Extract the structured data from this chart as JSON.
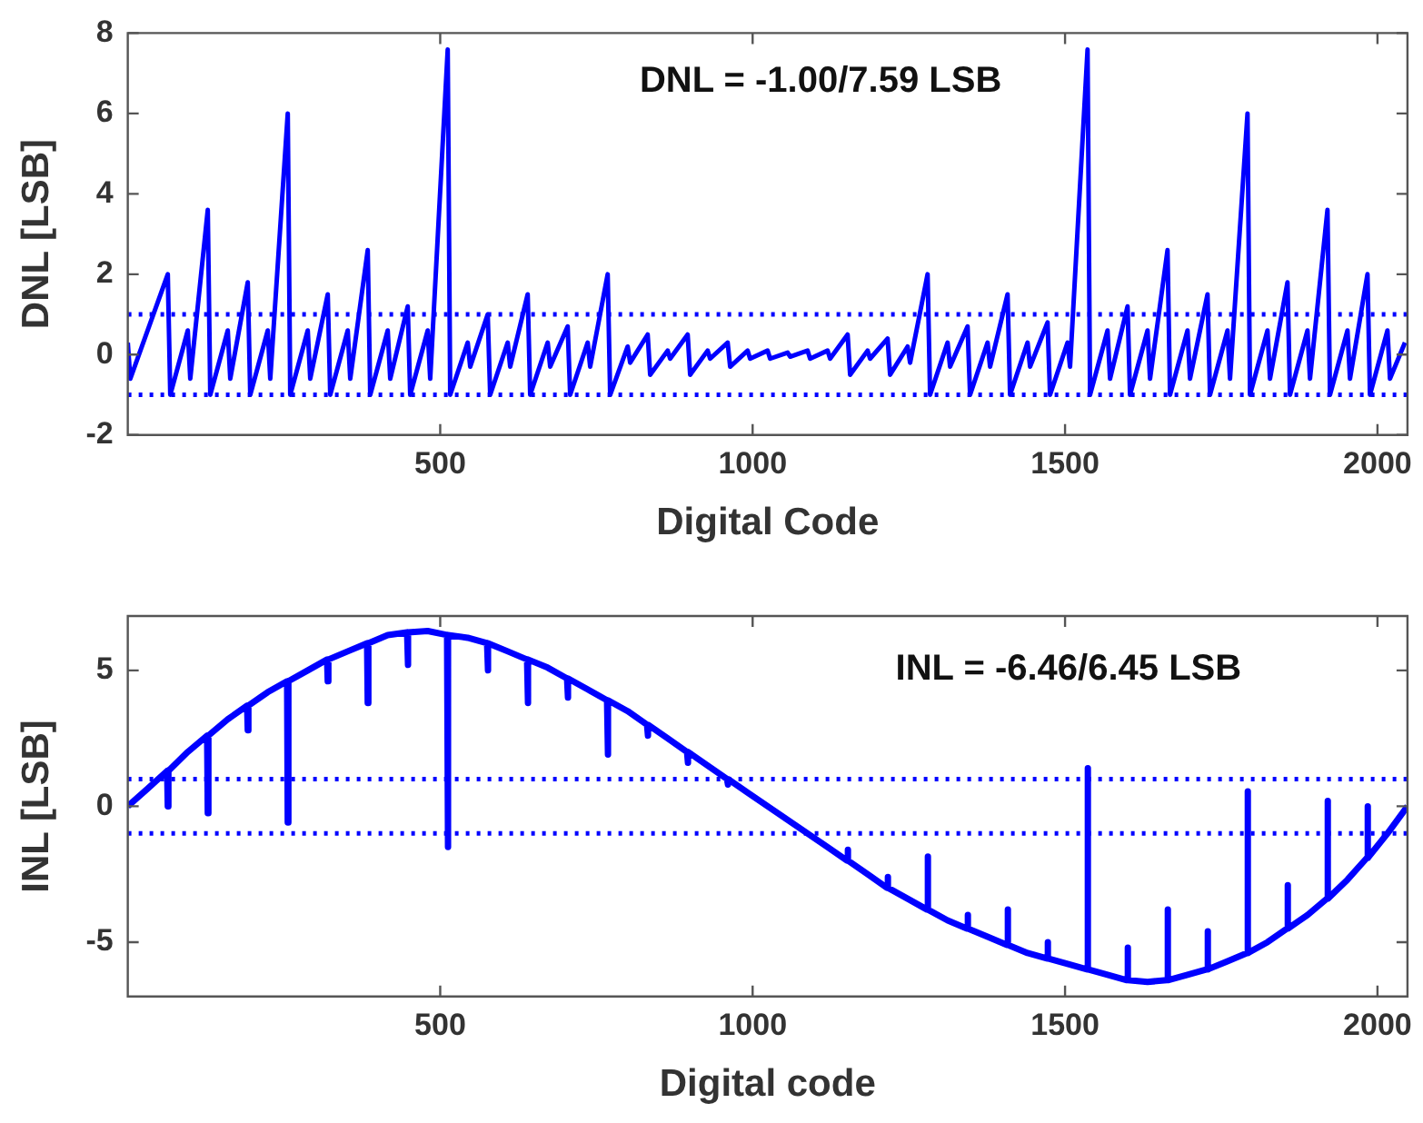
{
  "chart_data": [
    {
      "type": "line",
      "xlabel": "Digital Code",
      "ylabel": "DNL [LSB]",
      "xlim": [
        0,
        2048
      ],
      "xticks": [
        500,
        1000,
        1500,
        2000
      ],
      "ylim": [
        -2,
        8
      ],
      "yticks": [
        -2,
        0,
        2,
        4,
        6,
        8
      ],
      "grid": false,
      "legend": false,
      "marker": "none",
      "line_style": "solid",
      "annotations": [
        "DNL = -1.00/7.59 LSB"
      ],
      "ref_lines": [
        {
          "axis": "y",
          "value": 1,
          "color": "#0000ff",
          "line_style": "dotted"
        },
        {
          "axis": "y",
          "value": -1,
          "color": "#0000ff",
          "line_style": "dotted"
        }
      ],
      "series": [
        {
          "color": "#0000ff",
          "x": [
            0,
            4,
            64,
            68,
            96,
            100,
            128,
            132,
            160,
            164,
            192,
            196,
            224,
            228,
            256,
            260,
            288,
            292,
            320,
            324,
            352,
            356,
            384,
            388,
            416,
            420,
            448,
            452,
            480,
            484,
            512,
            516,
            544,
            548,
            576,
            580,
            608,
            612,
            640,
            644,
            672,
            676,
            704,
            708,
            736,
            740,
            768,
            772,
            800,
            804,
            832,
            836,
            864,
            868,
            896,
            900,
            928,
            932,
            960,
            964,
            992,
            996,
            1024,
            1028,
            1056,
            1060,
            1088,
            1092,
            1120,
            1124,
            1152,
            1156,
            1184,
            1188,
            1216,
            1220,
            1248,
            1252,
            1280,
            1284,
            1312,
            1316,
            1344,
            1348,
            1376,
            1380,
            1408,
            1412,
            1440,
            1444,
            1472,
            1476,
            1504,
            1508,
            1536,
            1540,
            1568,
            1572,
            1600,
            1604,
            1632,
            1636,
            1664,
            1668,
            1696,
            1700,
            1728,
            1732,
            1760,
            1764,
            1792,
            1796,
            1824,
            1828,
            1856,
            1860,
            1888,
            1892,
            1920,
            1924,
            1952,
            1956,
            1984,
            1988,
            2016,
            2020,
            2044
          ],
          "values": [
            0.3,
            -0.6,
            2.0,
            -1,
            0.6,
            -0.6,
            3.6,
            -1,
            0.6,
            -0.6,
            1.8,
            -1,
            0.6,
            -0.6,
            6.0,
            -1,
            0.6,
            -0.6,
            1.5,
            -1,
            0.6,
            -0.6,
            2.6,
            -1,
            0.6,
            -0.6,
            1.2,
            -1,
            0.6,
            -0.6,
            7.59,
            -1,
            0.3,
            -0.3,
            1.0,
            -1,
            0.3,
            -0.3,
            1.5,
            -1,
            0.3,
            -0.3,
            0.7,
            -1,
            0.3,
            -0.3,
            2.0,
            -1,
            0.2,
            -0.2,
            0.5,
            -0.5,
            0.1,
            -0.1,
            0.5,
            -0.5,
            0.1,
            -0.1,
            0.3,
            -0.3,
            0.1,
            -0.1,
            0.1,
            -0.1,
            0.05,
            -0.05,
            0.1,
            -0.1,
            0.1,
            -0.1,
            0.5,
            -0.5,
            0.1,
            -0.1,
            0.4,
            -0.5,
            0.2,
            -0.2,
            2.0,
            -1,
            0.3,
            -0.3,
            0.7,
            -1,
            0.3,
            -0.3,
            1.5,
            -1,
            0.3,
            -0.3,
            0.8,
            -1,
            0.3,
            -0.3,
            7.59,
            -1,
            0.6,
            -0.6,
            1.2,
            -1,
            0.6,
            -0.6,
            2.6,
            -1,
            0.6,
            -0.6,
            1.5,
            -1,
            0.6,
            -0.6,
            6.0,
            -1,
            0.6,
            -0.6,
            1.8,
            -1,
            0.6,
            -0.6,
            3.6,
            -1,
            0.6,
            -0.6,
            2.0,
            -1,
            0.6,
            -0.6,
            0.3
          ]
        }
      ]
    },
    {
      "type": "line",
      "xlabel": "Digital code",
      "ylabel": "INL [LSB]",
      "xlim": [
        0,
        2048
      ],
      "xticks": [
        500,
        1000,
        1500,
        2000
      ],
      "ylim": [
        -7,
        7
      ],
      "yticks": [
        -5,
        0,
        5
      ],
      "grid": false,
      "legend": false,
      "marker": "none",
      "line_style": "solid",
      "annotations": [
        "INL = -6.46/6.45 LSB"
      ],
      "ref_lines": [
        {
          "axis": "y",
          "value": 1,
          "color": "#0000ff",
          "line_style": "dotted"
        },
        {
          "axis": "y",
          "value": -1,
          "color": "#0000ff",
          "line_style": "dotted"
        }
      ],
      "series": [
        {
          "color": "#0000ff",
          "x": [
            0,
            32,
            63,
            64,
            65,
            96,
            127,
            128,
            129,
            160,
            191,
            192,
            193,
            224,
            255,
            256,
            257,
            288,
            319,
            320,
            321,
            352,
            383,
            384,
            385,
            416,
            447,
            448,
            449,
            480,
            511,
            512,
            513,
            544,
            575,
            576,
            577,
            608,
            639,
            640,
            641,
            672,
            703,
            704,
            705,
            736,
            767,
            768,
            769,
            800,
            831,
            832,
            833,
            864,
            895,
            896,
            897,
            928,
            959,
            960,
            961,
            992,
            1024,
            1056,
            1088,
            1120,
            1151,
            1152,
            1153,
            1184,
            1215,
            1216,
            1217,
            1248,
            1279,
            1280,
            1281,
            1312,
            1343,
            1344,
            1345,
            1376,
            1407,
            1408,
            1409,
            1440,
            1471,
            1472,
            1473,
            1504,
            1535,
            1536,
            1537,
            1568,
            1599,
            1600,
            1601,
            1632,
            1663,
            1664,
            1665,
            1696,
            1727,
            1728,
            1729,
            1760,
            1791,
            1792,
            1793,
            1824,
            1855,
            1856,
            1857,
            1888,
            1919,
            1920,
            1921,
            1952,
            1983,
            1984,
            1985,
            2016,
            2048
          ],
          "values": [
            0,
            0.65,
            1.3,
            0.0,
            1.3,
            2.0,
            2.6,
            -0.25,
            2.6,
            3.2,
            3.7,
            2.8,
            3.7,
            4.2,
            4.6,
            -0.6,
            4.6,
            5.0,
            5.4,
            4.6,
            5.4,
            5.7,
            6.0,
            3.8,
            6.0,
            6.3,
            6.4,
            5.2,
            6.4,
            6.45,
            6.3,
            -1.5,
            6.3,
            6.2,
            6.0,
            5.0,
            6.0,
            5.7,
            5.4,
            3.8,
            5.4,
            5.1,
            4.7,
            4.0,
            4.7,
            4.3,
            3.9,
            1.9,
            3.9,
            3.5,
            3.0,
            2.6,
            3.0,
            2.5,
            2.0,
            1.6,
            2.0,
            1.5,
            1.0,
            0.8,
            1.0,
            0.5,
            0.0,
            -0.5,
            -1.0,
            -1.5,
            -2.0,
            -1.6,
            -2.0,
            -2.5,
            -3.0,
            -2.6,
            -3.0,
            -3.4,
            -3.8,
            -1.85,
            -3.8,
            -4.2,
            -4.5,
            -4.0,
            -4.5,
            -4.8,
            -5.1,
            -3.8,
            -5.1,
            -5.4,
            -5.6,
            -5.0,
            -5.6,
            -5.8,
            -6.0,
            1.4,
            -6.0,
            -6.2,
            -6.4,
            -5.2,
            -6.4,
            -6.46,
            -6.4,
            -3.8,
            -6.4,
            -6.2,
            -6.0,
            -4.6,
            -6.0,
            -5.7,
            -5.4,
            0.55,
            -5.4,
            -5.0,
            -4.5,
            -2.9,
            -4.5,
            -4.0,
            -3.4,
            0.2,
            -3.4,
            -2.7,
            -1.9,
            0.0,
            -1.9,
            -1.0,
            0
          ]
        }
      ]
    }
  ]
}
